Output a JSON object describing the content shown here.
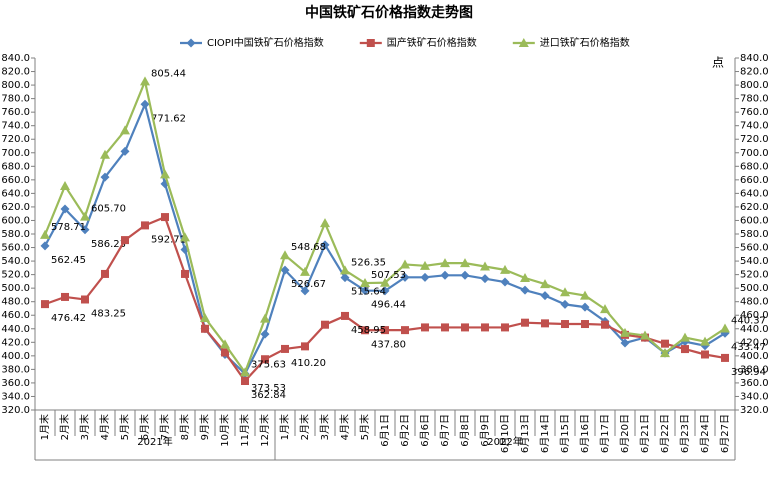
{
  "chart_data": {
    "type": "line",
    "title": "中国铁矿石价格指数走势图",
    "y2_label": "点",
    "categories": [
      "1月末",
      "2月末",
      "3月末",
      "4月末",
      "5月末",
      "6月末",
      "7月末",
      "8月末",
      "9月末",
      "10月末",
      "11月末",
      "12月末",
      "1月末",
      "2月末",
      "3月末",
      "4月末",
      "5月末",
      "6月1日",
      "6月2日",
      "6月6日",
      "6月7日",
      "6月8日",
      "6月9日",
      "6月10日",
      "6月13日",
      "6月14日",
      "6月15日",
      "6月16日",
      "6月17日",
      "6月20日",
      "6月21日",
      "6月22日",
      "6月23日",
      "6月24日",
      "6月27日"
    ],
    "groups": [
      {
        "name": "2021年",
        "start": 0,
        "end": 11
      },
      {
        "name": "2022年",
        "start": 12,
        "end": 34
      }
    ],
    "series": [
      {
        "name": "CIOPI中国铁矿石价格指数",
        "color": "#4f81bd",
        "label_color": "#2e75b6",
        "marker": "diamond",
        "values": [
          562.45,
          617,
          586.23,
          664,
          702,
          771.62,
          654,
          557,
          440,
          402,
          373.53,
          432,
          526.67,
          496,
          564,
          515.64,
          496.44,
          496,
          516,
          516,
          519,
          519,
          514,
          509,
          497,
          489,
          476,
          472,
          451,
          419,
          427,
          404,
          421,
          415,
          433.47
        ],
        "value_labels": [
          "562.45",
          null,
          "586.23",
          null,
          null,
          "771.62",
          null,
          null,
          null,
          null,
          "373.53",
          null,
          "526.67",
          null,
          null,
          "515.64",
          "496.44",
          null,
          null,
          null,
          null,
          null,
          null,
          null,
          null,
          null,
          null,
          null,
          null,
          null,
          null,
          null,
          null,
          null,
          "433.47"
        ]
      },
      {
        "name": "国产铁矿石价格指数",
        "color": "#c0504d",
        "label_color": "#c00000",
        "marker": "square",
        "values": [
          476.42,
          487,
          483.25,
          521,
          571,
          592.71,
          605,
          521,
          440,
          405,
          362.84,
          395,
          410.2,
          414,
          446,
          458.95,
          437.8,
          438,
          438,
          442,
          442,
          442,
          442,
          442,
          449,
          448,
          447,
          447,
          446,
          431,
          427,
          418,
          410,
          402,
          396.94
        ],
        "value_labels": [
          "476.42",
          null,
          "483.25",
          null,
          null,
          "592.71",
          null,
          null,
          null,
          null,
          "362.84",
          null,
          "410.20",
          null,
          null,
          "458.95",
          "437.80",
          null,
          null,
          null,
          null,
          null,
          null,
          null,
          null,
          null,
          null,
          null,
          null,
          null,
          null,
          null,
          null,
          null,
          "396.94"
        ]
      },
      {
        "name": "进口铁矿石价格指数",
        "color": "#9bbb59",
        "label_color": "#77933c",
        "marker": "triangle",
        "values": [
          578.71,
          651,
          605.7,
          697,
          733,
          805.44,
          668,
          575,
          456,
          417,
          375.63,
          455,
          548.68,
          524,
          596,
          526.35,
          507.53,
          508,
          535,
          533,
          537,
          537,
          532,
          527,
          515,
          506,
          494,
          489,
          469,
          434,
          430,
          404,
          427,
          421,
          440.37
        ],
        "value_labels": [
          "578.71",
          null,
          "605.70",
          null,
          null,
          "805.44",
          null,
          null,
          null,
          null,
          "375.63",
          null,
          "548.68",
          null,
          null,
          "526.35",
          "507.53",
          null,
          null,
          null,
          null,
          null,
          null,
          null,
          null,
          null,
          null,
          null,
          null,
          null,
          null,
          null,
          null,
          null,
          "440.37"
        ]
      }
    ],
    "ylim": [
      320,
      840
    ],
    "yticks": [
      {
        "value": 320,
        "label": "320.0"
      },
      {
        "value": 340,
        "label": "340.0"
      },
      {
        "value": 360,
        "label": "360.0"
      },
      {
        "value": 380,
        "label": "380.0"
      },
      {
        "value": 400,
        "label": "400.0"
      },
      {
        "value": 420,
        "label": "420.0"
      },
      {
        "value": 440,
        "label": "440.0"
      },
      {
        "value": 460,
        "label": "460.0"
      },
      {
        "value": 480,
        "label": "480.0"
      },
      {
        "value": 500,
        "label": "500.0"
      },
      {
        "value": 520,
        "label": "520.0"
      },
      {
        "value": 540,
        "label": "540.0"
      },
      {
        "value": 560,
        "label": "560.0"
      },
      {
        "value": 580,
        "label": "580.0"
      },
      {
        "value": 600,
        "label": "600.0"
      },
      {
        "value": 620,
        "label": "620.0"
      },
      {
        "value": 640,
        "label": "640.0"
      },
      {
        "value": 660,
        "label": "660.0"
      },
      {
        "value": 680,
        "label": "680.0"
      },
      {
        "value": 700,
        "label": "700.0"
      },
      {
        "value": 720,
        "label": "720.0"
      },
      {
        "value": 740,
        "label": "740.0"
      },
      {
        "value": 760,
        "label": "760.0"
      },
      {
        "value": 780,
        "label": "780.0"
      },
      {
        "value": 800,
        "label": "800.0"
      },
      {
        "value": 820,
        "label": "820.0"
      },
      {
        "value": 840,
        "label": "840.0"
      }
    ],
    "y2lim": [
      320,
      840
    ],
    "y2ticks": [
      {
        "value": 320,
        "label": "320.0"
      },
      {
        "value": 340,
        "label": "340.0"
      },
      {
        "value": 360,
        "label": "360.0"
      },
      {
        "value": 380,
        "label": "380.0"
      },
      {
        "value": 400,
        "label": "400.0"
      },
      {
        "value": 420,
        "label": "420.0"
      },
      {
        "value": 440,
        "label": "440.0"
      },
      {
        "value": 460,
        "label": "460.0"
      },
      {
        "value": 480,
        "label": "480.0"
      },
      {
        "value": 500,
        "label": "500.0"
      },
      {
        "value": 520,
        "label": "520.0"
      },
      {
        "value": 540,
        "label": "540.0"
      },
      {
        "value": 560,
        "label": "560.0"
      },
      {
        "value": 580,
        "label": "580.0"
      },
      {
        "value": 600,
        "label": "600.0"
      },
      {
        "value": 620,
        "label": "620.0"
      },
      {
        "value": 640,
        "label": "640.0"
      },
      {
        "value": 660,
        "label": "660.0"
      },
      {
        "value": 680,
        "label": "680.0"
      },
      {
        "value": 700,
        "label": "700.0"
      },
      {
        "value": 720,
        "label": "720.0"
      },
      {
        "value": 740,
        "label": "740.0"
      },
      {
        "value": 760,
        "label": "760.0"
      },
      {
        "value": 780,
        "label": "780.0"
      },
      {
        "value": 800,
        "label": "800.0"
      },
      {
        "value": 820,
        "label": "820.0"
      },
      {
        "value": 840,
        "label": "840.0"
      }
    ],
    "grid": false,
    "legend": "top"
  }
}
